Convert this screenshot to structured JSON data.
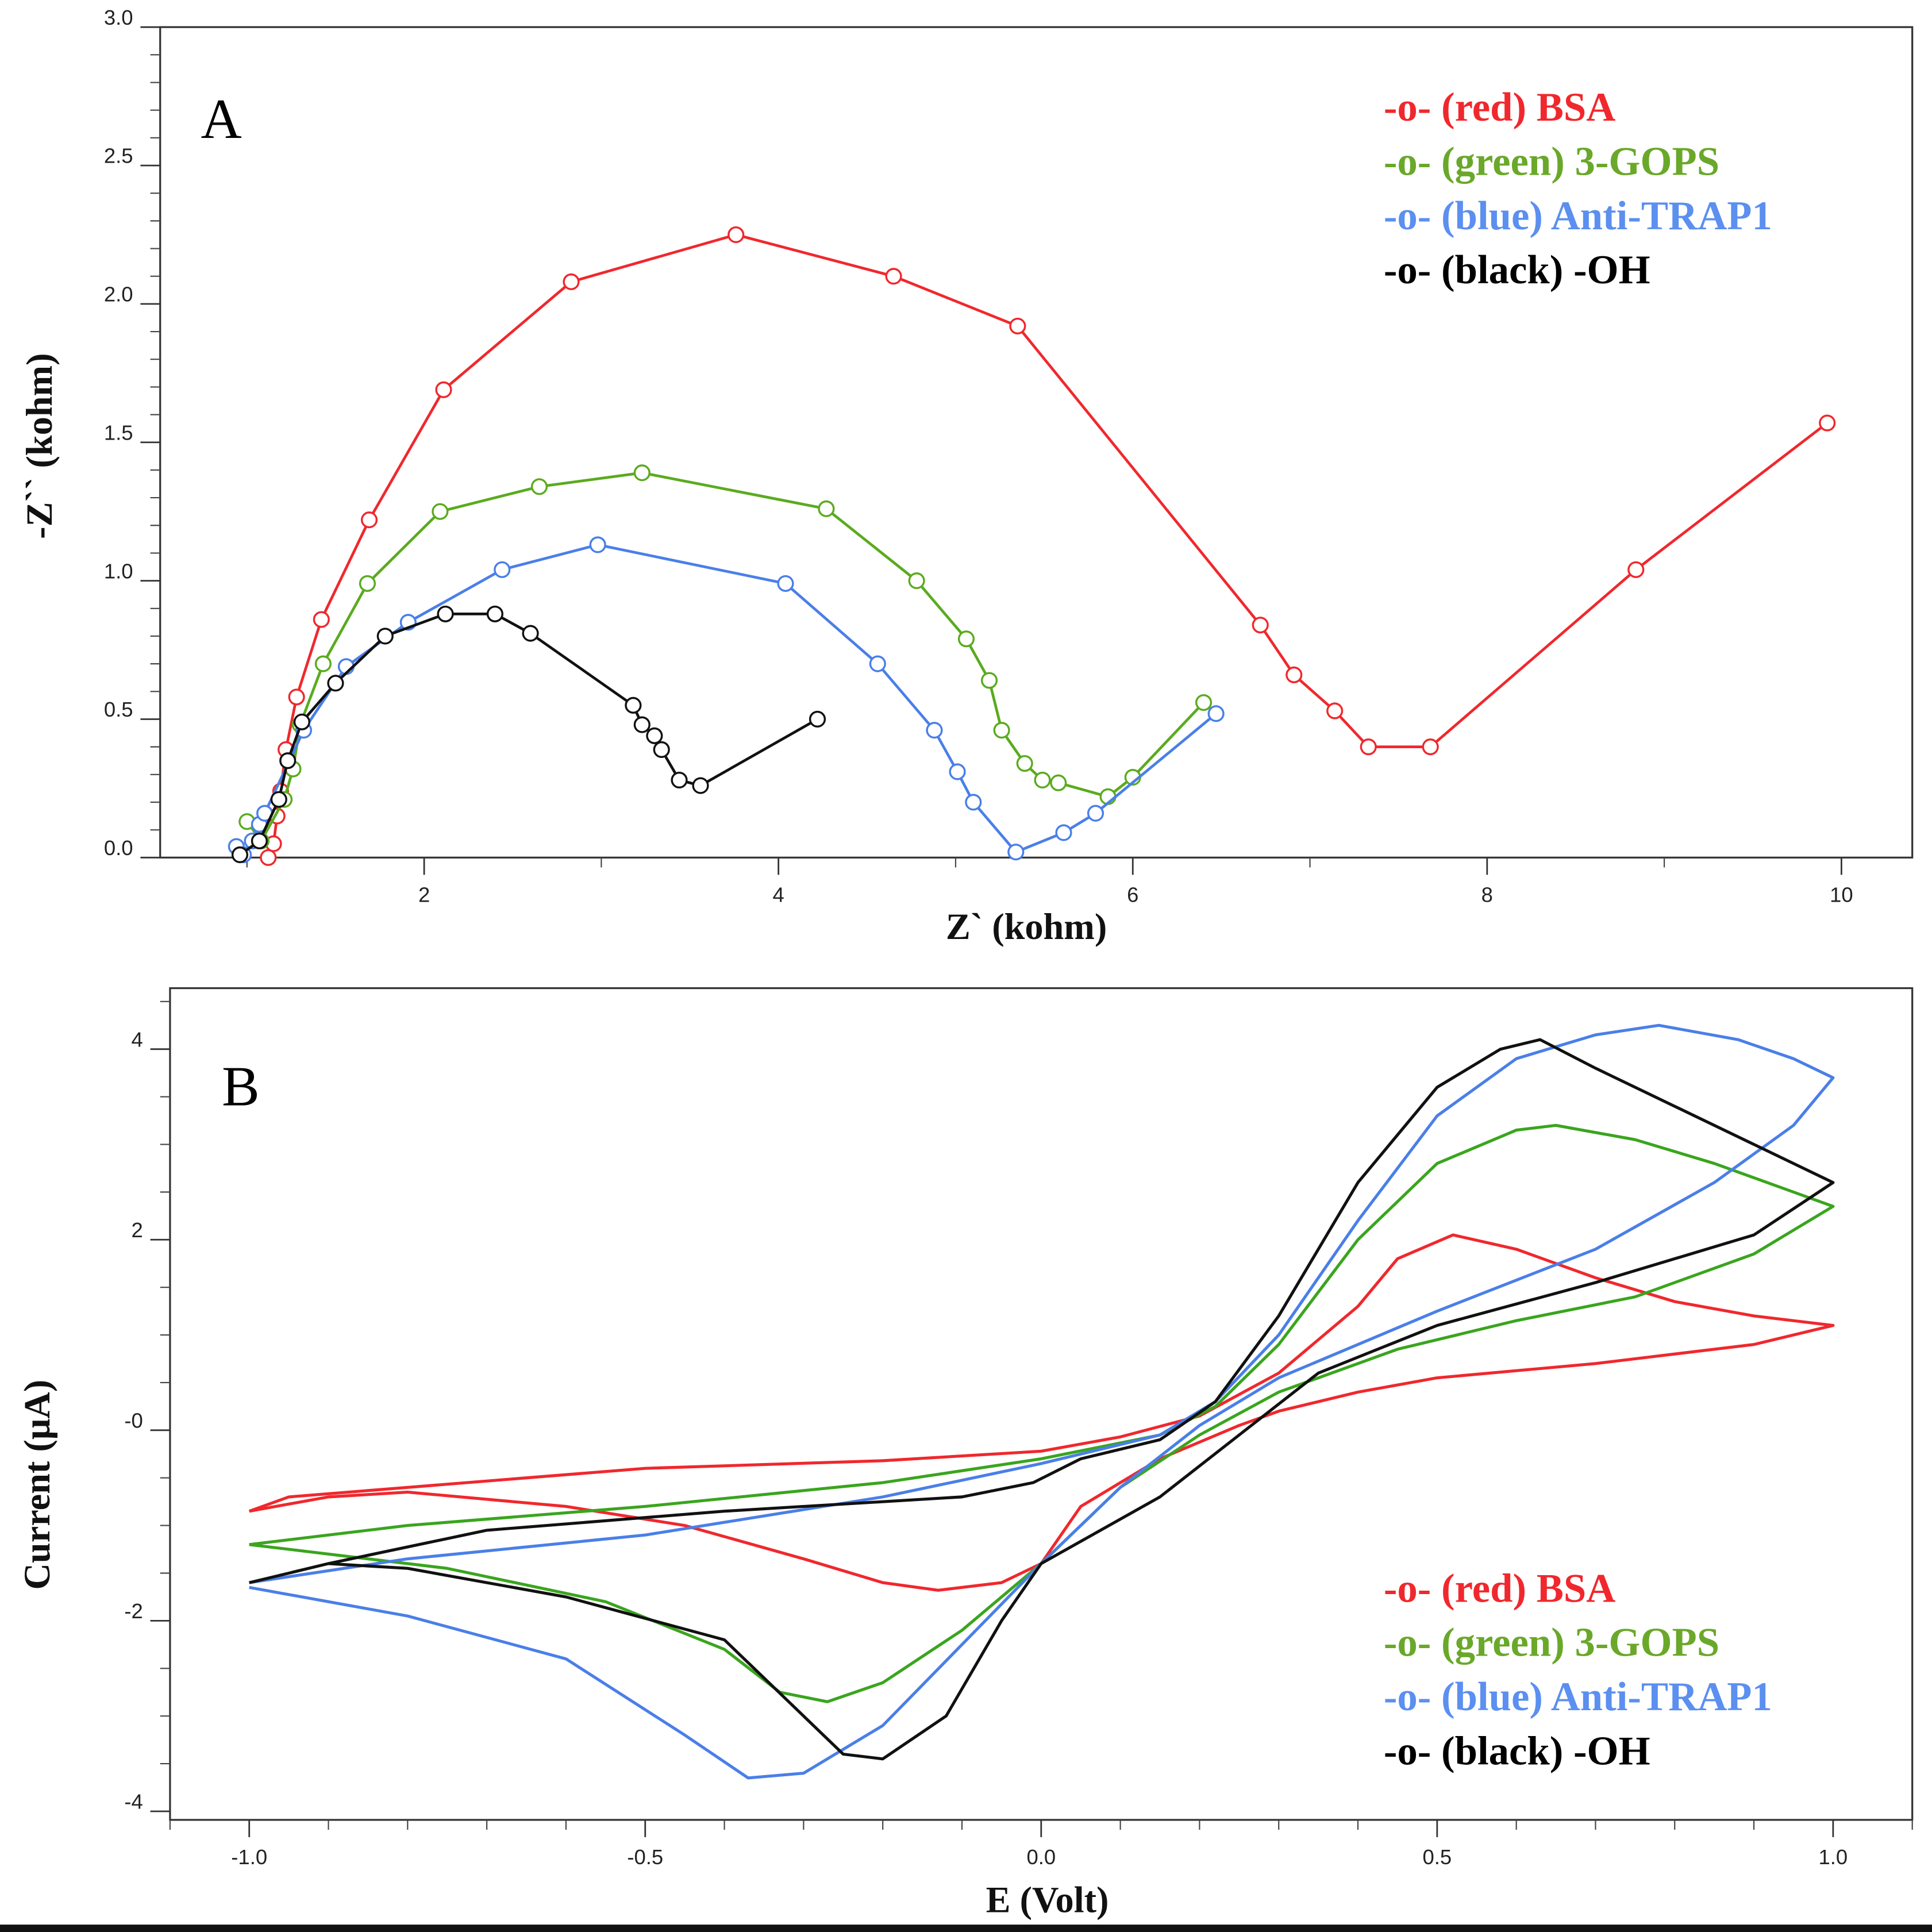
{
  "chart_data": [
    {
      "type": "scatter",
      "panel_label": "A",
      "xlabel": "Z` (kohm)",
      "ylabel": "-Z`` (kohm)",
      "xlim": [
        0.51,
        10.4
      ],
      "ylim": [
        0,
        3.0
      ],
      "xticks": [
        "2",
        "4",
        "6",
        "8",
        "10"
      ],
      "xtick_values": [
        2,
        4,
        6,
        8,
        10
      ],
      "yticks": [
        "0.0",
        "0.5",
        "1.0",
        "1.5",
        "2.0",
        "2.5",
        "3.0"
      ],
      "ytick_values": [
        0,
        0.5,
        1.0,
        1.5,
        2.0,
        2.5,
        3.0
      ],
      "legend": [
        "-o- (red) BSA",
        "-o- (green) 3-GOPS",
        "-o- (blue) Anti-TRAP1",
        "-o- (black) -OH"
      ],
      "legend_position": "top-right",
      "series": [
        {
          "name": "BSA",
          "color": "#f0282d",
          "points": [
            [
              1.12,
              0.0
            ],
            [
              1.15,
              0.05
            ],
            [
              1.17,
              0.15
            ],
            [
              1.19,
              0.24
            ],
            [
              1.22,
              0.39
            ],
            [
              1.28,
              0.58
            ],
            [
              1.42,
              0.86
            ],
            [
              1.69,
              1.22
            ],
            [
              2.11,
              1.69
            ],
            [
              2.83,
              2.08
            ],
            [
              3.76,
              2.25
            ],
            [
              4.65,
              2.1
            ],
            [
              5.35,
              1.92
            ],
            [
              6.72,
              0.84
            ],
            [
              6.91,
              0.66
            ],
            [
              7.14,
              0.53
            ],
            [
              7.33,
              0.4
            ],
            [
              7.68,
              0.4
            ],
            [
              8.84,
              1.04
            ],
            [
              9.92,
              1.57
            ]
          ]
        },
        {
          "name": "3-GOPS",
          "color": "#5aab1e",
          "points": [
            [
              1.0,
              0.13
            ],
            [
              1.08,
              0.06
            ],
            [
              1.21,
              0.21
            ],
            [
              1.26,
              0.32
            ],
            [
              1.3,
              0.48
            ],
            [
              1.43,
              0.7
            ],
            [
              1.68,
              0.99
            ],
            [
              2.09,
              1.25
            ],
            [
              2.65,
              1.34
            ],
            [
              3.23,
              1.39
            ],
            [
              4.27,
              1.26
            ],
            [
              4.78,
              1.0
            ],
            [
              5.06,
              0.79
            ],
            [
              5.19,
              0.64
            ],
            [
              5.26,
              0.46
            ],
            [
              5.39,
              0.34
            ],
            [
              5.49,
              0.28
            ],
            [
              5.58,
              0.27
            ],
            [
              5.86,
              0.22
            ],
            [
              6.0,
              0.29
            ],
            [
              6.4,
              0.56
            ]
          ]
        },
        {
          "name": "Anti-TRAP1",
          "color": "#4a7fe8",
          "points": [
            [
              0.94,
              0.04
            ],
            [
              0.98,
              0.01
            ],
            [
              1.03,
              0.06
            ],
            [
              1.07,
              0.12
            ],
            [
              1.1,
              0.16
            ],
            [
              1.32,
              0.46
            ],
            [
              1.56,
              0.69
            ],
            [
              1.91,
              0.85
            ],
            [
              2.44,
              1.04
            ],
            [
              2.98,
              1.13
            ],
            [
              4.04,
              0.99
            ],
            [
              4.56,
              0.7
            ],
            [
              4.88,
              0.46
            ],
            [
              5.01,
              0.31
            ],
            [
              5.1,
              0.2
            ],
            [
              5.34,
              0.02
            ],
            [
              5.61,
              0.09
            ],
            [
              5.79,
              0.16
            ],
            [
              6.47,
              0.52
            ]
          ]
        },
        {
          "name": "-OH",
          "color": "#111111",
          "points": [
            [
              0.96,
              0.01
            ],
            [
              1.07,
              0.06
            ],
            [
              1.18,
              0.21
            ],
            [
              1.23,
              0.35
            ],
            [
              1.31,
              0.49
            ],
            [
              1.5,
              0.63
            ],
            [
              1.78,
              0.8
            ],
            [
              2.12,
              0.88
            ],
            [
              2.4,
              0.88
            ],
            [
              2.6,
              0.81
            ],
            [
              3.18,
              0.55
            ],
            [
              3.23,
              0.48
            ],
            [
              3.3,
              0.44
            ],
            [
              3.34,
              0.39
            ],
            [
              3.44,
              0.28
            ],
            [
              3.56,
              0.26
            ],
            [
              4.22,
              0.5
            ]
          ]
        }
      ]
    },
    {
      "type": "line",
      "panel_label": "B",
      "xlabel": "E  (Volt)",
      "ylabel": "Current (μA)",
      "xlim": [
        -1.1,
        1.1
      ],
      "ylim": [
        -4.09,
        4.64
      ],
      "xticks": [
        "-1.0",
        "-0.5",
        "0.0",
        "0.5",
        "1.0"
      ],
      "xtick_values": [
        -1,
        -0.5,
        0,
        0.5,
        1
      ],
      "yticks": [
        "4",
        "2",
        "-0",
        "-2",
        "-4"
      ],
      "ytick_values": [
        4,
        2,
        0,
        -2,
        -4
      ],
      "legend": [
        "-o- (red) BSA",
        "-o- (green) 3-GOPS",
        "-o- (blue) Anti-TRAP1",
        "-o- (black) -OH"
      ],
      "legend_position": "bottom-right",
      "series": [
        {
          "name": "BSA",
          "color": "#f0282d",
          "points": [
            [
              -1,
              -0.85
            ],
            [
              -0.95,
              -0.7
            ],
            [
              -0.8,
              -0.6
            ],
            [
              -0.5,
              -0.4
            ],
            [
              -0.2,
              -0.32
            ],
            [
              0,
              -0.22
            ],
            [
              0.1,
              -0.07
            ],
            [
              0.2,
              0.15
            ],
            [
              0.3,
              0.6
            ],
            [
              0.4,
              1.3
            ],
            [
              0.45,
              1.8
            ],
            [
              0.52,
              2.05
            ],
            [
              0.6,
              1.9
            ],
            [
              0.7,
              1.6
            ],
            [
              0.8,
              1.35
            ],
            [
              0.9,
              1.2
            ],
            [
              1.0,
              1.1
            ],
            [
              0.9,
              0.9
            ],
            [
              0.7,
              0.7
            ],
            [
              0.5,
              0.55
            ],
            [
              0.4,
              0.4
            ],
            [
              0.3,
              0.2
            ],
            [
              0.25,
              0.05
            ],
            [
              0.15,
              -0.3
            ],
            [
              0.05,
              -0.8
            ],
            [
              0,
              -1.4
            ],
            [
              -0.05,
              -1.6
            ],
            [
              -0.13,
              -1.68
            ],
            [
              -0.2,
              -1.6
            ],
            [
              -0.3,
              -1.35
            ],
            [
              -0.45,
              -1.0
            ],
            [
              -0.6,
              -0.8
            ],
            [
              -0.8,
              -0.65
            ],
            [
              -0.9,
              -0.7
            ],
            [
              -1,
              -0.85
            ]
          ]
        },
        {
          "name": "3-GOPS",
          "color": "#3aa51e",
          "points": [
            [
              -1,
              -1.2
            ],
            [
              -0.8,
              -1.0
            ],
            [
              -0.5,
              -0.8
            ],
            [
              -0.2,
              -0.55
            ],
            [
              0,
              -0.3
            ],
            [
              0.15,
              -0.05
            ],
            [
              0.22,
              0.25
            ],
            [
              0.3,
              0.9
            ],
            [
              0.4,
              2.0
            ],
            [
              0.5,
              2.8
            ],
            [
              0.6,
              3.15
            ],
            [
              0.65,
              3.2
            ],
            [
              0.75,
              3.05
            ],
            [
              0.85,
              2.8
            ],
            [
              0.95,
              2.5
            ],
            [
              1.0,
              2.35
            ],
            [
              0.9,
              1.85
            ],
            [
              0.75,
              1.4
            ],
            [
              0.6,
              1.15
            ],
            [
              0.45,
              0.85
            ],
            [
              0.3,
              0.4
            ],
            [
              0.2,
              -0.05
            ],
            [
              0.1,
              -0.6
            ],
            [
              0,
              -1.4
            ],
            [
              -0.1,
              -2.1
            ],
            [
              -0.2,
              -2.65
            ],
            [
              -0.27,
              -2.85
            ],
            [
              -0.33,
              -2.75
            ],
            [
              -0.4,
              -2.3
            ],
            [
              -0.55,
              -1.8
            ],
            [
              -0.75,
              -1.45
            ],
            [
              -1,
              -1.2
            ]
          ]
        },
        {
          "name": "Anti-TRAP1",
          "color": "#4a7fe8",
          "points": [
            [
              -1,
              -1.6
            ],
            [
              -0.8,
              -1.35
            ],
            [
              -0.5,
              -1.1
            ],
            [
              -0.2,
              -0.7
            ],
            [
              0,
              -0.35
            ],
            [
              0.15,
              -0.05
            ],
            [
              0.22,
              0.3
            ],
            [
              0.3,
              1.0
            ],
            [
              0.4,
              2.2
            ],
            [
              0.5,
              3.3
            ],
            [
              0.6,
              3.9
            ],
            [
              0.7,
              4.15
            ],
            [
              0.78,
              4.25
            ],
            [
              0.88,
              4.1
            ],
            [
              0.95,
              3.9
            ],
            [
              1.0,
              3.7
            ],
            [
              0.95,
              3.2
            ],
            [
              0.85,
              2.6
            ],
            [
              0.7,
              1.9
            ],
            [
              0.5,
              1.25
            ],
            [
              0.3,
              0.55
            ],
            [
              0.2,
              0.05
            ],
            [
              0.1,
              -0.6
            ],
            [
              0,
              -1.4
            ],
            [
              -0.1,
              -2.25
            ],
            [
              -0.2,
              -3.1
            ],
            [
              -0.3,
              -3.6
            ],
            [
              -0.37,
              -3.65
            ],
            [
              -0.45,
              -3.2
            ],
            [
              -0.6,
              -2.4
            ],
            [
              -0.8,
              -1.95
            ],
            [
              -1,
              -1.65
            ]
          ]
        },
        {
          "name": "-OH",
          "color": "#111111",
          "points": [
            [
              -1,
              -1.6
            ],
            [
              -0.9,
              -1.4
            ],
            [
              -0.7,
              -1.05
            ],
            [
              -0.4,
              -0.85
            ],
            [
              -0.1,
              -0.7
            ],
            [
              -0.01,
              -0.55
            ],
            [
              0.05,
              -0.3
            ],
            [
              0.15,
              -0.1
            ],
            [
              0.22,
              0.3
            ],
            [
              0.3,
              1.2
            ],
            [
              0.4,
              2.6
            ],
            [
              0.5,
              3.6
            ],
            [
              0.58,
              4.0
            ],
            [
              0.63,
              4.1
            ],
            [
              0.7,
              3.8
            ],
            [
              0.8,
              3.4
            ],
            [
              0.9,
              3.0
            ],
            [
              1.0,
              2.6
            ],
            [
              0.9,
              2.05
            ],
            [
              0.7,
              1.55
            ],
            [
              0.5,
              1.1
            ],
            [
              0.35,
              0.6
            ],
            [
              0.25,
              -0.05
            ],
            [
              0.15,
              -0.7
            ],
            [
              0,
              -1.4
            ],
            [
              -0.05,
              -2.0
            ],
            [
              -0.12,
              -3.0
            ],
            [
              -0.2,
              -3.45
            ],
            [
              -0.25,
              -3.4
            ],
            [
              -0.3,
              -3.0
            ],
            [
              -0.4,
              -2.2
            ],
            [
              -0.6,
              -1.75
            ],
            [
              -0.8,
              -1.45
            ],
            [
              -0.9,
              -1.4
            ],
            [
              -1,
              -1.6
            ]
          ]
        }
      ]
    }
  ],
  "legend_colors": [
    "#f0282d",
    "#6aa82a",
    "#5b8ff0",
    "#000000"
  ]
}
